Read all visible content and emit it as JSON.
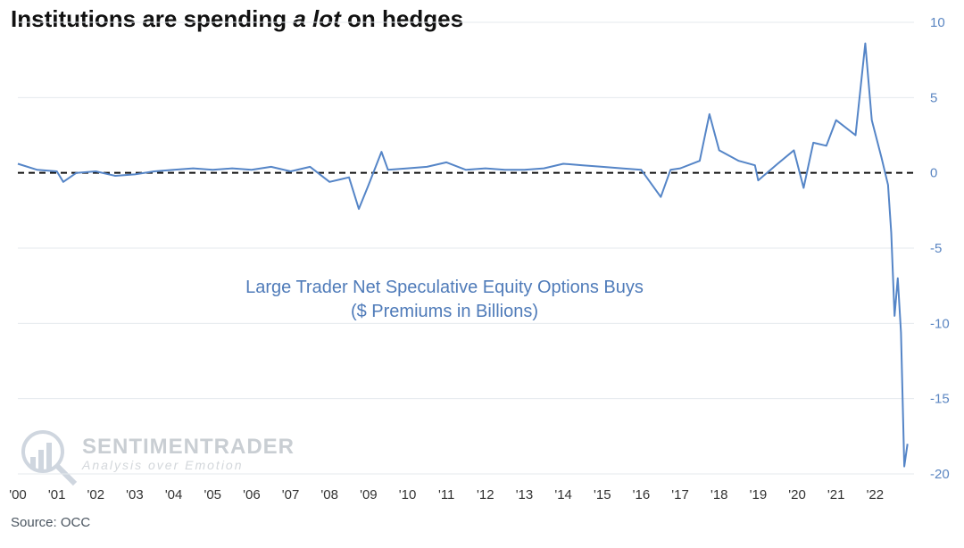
{
  "title": {
    "before": "Institutions are spending ",
    "emphasis": "a lot",
    "after": " on hedges"
  },
  "source": "Source: OCC",
  "watermark": {
    "name": "SENTIMENTRADER",
    "tagline": "Analysis over Emotion",
    "icon": "sentimentrader-logo-icon"
  },
  "colors": {
    "series": "#5585c7",
    "axis_text": "#5b86c2",
    "zero_line": "#111111",
    "grid": "#e5e9ee",
    "annotation": "#4f7bb9"
  },
  "chart_data": {
    "type": "line",
    "title": "Institutions are spending a lot on hedges",
    "annotation": [
      "Large Trader Net Speculative Equity Options Buys",
      "($ Premiums in Billions)"
    ],
    "y_axis": {
      "side": "right",
      "ylim": [
        -20,
        10
      ],
      "ticks": [
        10,
        5,
        0,
        -5,
        -10,
        -15,
        -20
      ]
    },
    "x_axis": {
      "xlim": [
        "2000-01",
        "2023-01"
      ],
      "ticks": [
        "'00",
        "'01",
        "'02",
        "'03",
        "'04",
        "'05",
        "'06",
        "'07",
        "'08",
        "'09",
        "'10",
        "'11",
        "'12",
        "'13",
        "'14",
        "'15",
        "'16",
        "'17",
        "'18",
        "'19",
        "'20",
        "'21",
        "'22"
      ]
    },
    "reference_line": {
      "y": 0,
      "style": "dashed"
    },
    "grid": "horizontal",
    "series": [
      {
        "points": [
          [
            "2000-01",
            0.6
          ],
          [
            "2000-07",
            0.2
          ],
          [
            "2001-01",
            0.1
          ],
          [
            "2001-03",
            -0.6
          ],
          [
            "2001-07",
            0.0
          ],
          [
            "2002-01",
            0.1
          ],
          [
            "2002-07",
            -0.2
          ],
          [
            "2003-01",
            -0.1
          ],
          [
            "2003-07",
            0.1
          ],
          [
            "2004-01",
            0.2
          ],
          [
            "2004-07",
            0.3
          ],
          [
            "2005-01",
            0.2
          ],
          [
            "2005-07",
            0.3
          ],
          [
            "2006-01",
            0.2
          ],
          [
            "2006-07",
            0.4
          ],
          [
            "2007-01",
            0.1
          ],
          [
            "2007-07",
            0.4
          ],
          [
            "2008-01",
            -0.6
          ],
          [
            "2008-07",
            -0.3
          ],
          [
            "2008-10",
            -2.4
          ],
          [
            "2009-01",
            -0.8
          ],
          [
            "2009-05",
            1.4
          ],
          [
            "2009-07",
            0.2
          ],
          [
            "2010-01",
            0.3
          ],
          [
            "2010-07",
            0.4
          ],
          [
            "2011-01",
            0.7
          ],
          [
            "2011-07",
            0.2
          ],
          [
            "2012-01",
            0.3
          ],
          [
            "2012-07",
            0.2
          ],
          [
            "2013-01",
            0.2
          ],
          [
            "2013-07",
            0.3
          ],
          [
            "2014-01",
            0.6
          ],
          [
            "2014-07",
            0.5
          ],
          [
            "2015-01",
            0.4
          ],
          [
            "2015-07",
            0.3
          ],
          [
            "2016-01",
            0.2
          ],
          [
            "2016-07",
            -1.6
          ],
          [
            "2016-10",
            0.2
          ],
          [
            "2017-01",
            0.3
          ],
          [
            "2017-07",
            0.8
          ],
          [
            "2017-10",
            3.9
          ],
          [
            "2018-01",
            1.5
          ],
          [
            "2018-07",
            0.8
          ],
          [
            "2018-12",
            0.5
          ],
          [
            "2019-01",
            -0.5
          ],
          [
            "2019-07",
            0.6
          ],
          [
            "2019-12",
            1.5
          ],
          [
            "2020-03",
            -1.0
          ],
          [
            "2020-06",
            2.0
          ],
          [
            "2020-10",
            1.8
          ],
          [
            "2021-01",
            3.5
          ],
          [
            "2021-07",
            2.5
          ],
          [
            "2021-10",
            8.6
          ],
          [
            "2021-12",
            3.5
          ],
          [
            "2022-03",
            1.0
          ],
          [
            "2022-05",
            -0.8
          ],
          [
            "2022-06",
            -4.0
          ],
          [
            "2022-07",
            -9.5
          ],
          [
            "2022-08",
            -7.0
          ],
          [
            "2022-09",
            -10.6
          ],
          [
            "2022-10",
            -19.5
          ],
          [
            "2022-11",
            -18.0
          ]
        ]
      }
    ]
  }
}
